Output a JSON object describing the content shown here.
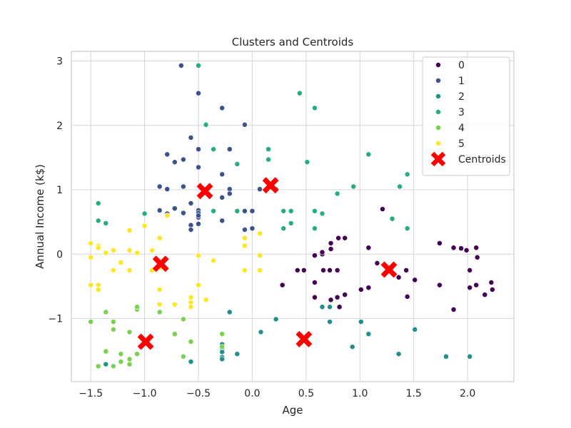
{
  "chart_data": {
    "type": "scatter",
    "title": "Clusters and Centroids",
    "xlabel": "Age",
    "ylabel": "Annual Income (k$)",
    "xlim": [
      -1.68,
      2.43
    ],
    "ylim": [
      -1.98,
      3.15
    ],
    "xticks": [
      -1.5,
      -1.0,
      -0.5,
      0.0,
      0.5,
      1.0,
      1.5,
      2.0
    ],
    "xtick_labels": [
      "−1.5",
      "−1.0",
      "−0.5",
      "0.0",
      "0.5",
      "1.0",
      "1.5",
      "2.0"
    ],
    "yticks": [
      -1,
      0,
      1,
      2,
      3
    ],
    "ytick_labels": [
      "−1",
      "0",
      "1",
      "2",
      "3"
    ],
    "grid": true,
    "legend_position": "top-right",
    "series": [
      {
        "name": "0",
        "color": "#440154",
        "points": [
          [
            0.28,
            -0.48
          ],
          [
            0.42,
            -0.25
          ],
          [
            0.48,
            -0.25
          ],
          [
            0.58,
            -0.67
          ],
          [
            0.58,
            -0.44
          ],
          [
            0.58,
            -0.02
          ],
          [
            0.65,
            0.0
          ],
          [
            0.65,
            0.03
          ],
          [
            0.66,
            -0.25
          ],
          [
            0.72,
            -0.25
          ],
          [
            0.73,
            0.08
          ],
          [
            0.73,
            0.17
          ],
          [
            0.73,
            -0.71
          ],
          [
            0.79,
            -0.67
          ],
          [
            0.79,
            -0.25
          ],
          [
            0.8,
            0.25
          ],
          [
            0.81,
            -0.82
          ],
          [
            0.86,
            0.25
          ],
          [
            0.86,
            -0.63
          ],
          [
            1.01,
            -0.55
          ],
          [
            1.08,
            0.1
          ],
          [
            1.08,
            -0.52
          ],
          [
            1.16,
            -0.14
          ],
          [
            1.21,
            0.7
          ],
          [
            1.36,
            -0.36
          ],
          [
            1.43,
            -0.25
          ],
          [
            1.44,
            -0.66
          ],
          [
            1.51,
            -0.4
          ],
          [
            1.74,
            0.17
          ],
          [
            1.74,
            -0.48
          ],
          [
            1.87,
            -0.86
          ],
          [
            1.87,
            0.1
          ],
          [
            1.94,
            0.09
          ],
          [
            1.99,
            0.06
          ],
          [
            2.02,
            -0.25
          ],
          [
            2.02,
            -0.52
          ],
          [
            2.08,
            0.1
          ],
          [
            2.08,
            -0.48
          ],
          [
            2.09,
            -0.05
          ],
          [
            2.16,
            -0.63
          ],
          [
            2.22,
            -0.44
          ],
          [
            2.23,
            -0.55
          ]
        ]
      },
      {
        "name": "1",
        "color": "#3b528b",
        "points": [
          [
            -0.86,
            1.05
          ],
          [
            -0.86,
            0.68
          ],
          [
            -0.79,
            1.55
          ],
          [
            -0.79,
            1.01
          ],
          [
            -0.79,
            0.63
          ],
          [
            -0.72,
            1.43
          ],
          [
            -0.72,
            0.71
          ],
          [
            -0.66,
            2.93
          ],
          [
            -0.64,
            1.05
          ],
          [
            -0.64,
            1.47
          ],
          [
            -0.64,
            0.64
          ],
          [
            -0.57,
            1.81
          ],
          [
            -0.57,
            0.79
          ],
          [
            -0.57,
            0.45
          ],
          [
            -0.57,
            0.38
          ],
          [
            -0.5,
            0.68
          ],
          [
            -0.5,
            0.64
          ],
          [
            -0.5,
            0.57
          ],
          [
            -0.5,
            0.47
          ],
          [
            -0.5,
            0.6
          ],
          [
            -0.5,
            2.5
          ],
          [
            -0.5,
            1.63
          ],
          [
            -0.5,
            1.35
          ],
          [
            -0.28,
            2.27
          ],
          [
            -0.28,
            1.24
          ],
          [
            -0.28,
            0.52
          ],
          [
            -0.28,
            0.88
          ],
          [
            -0.21,
            1.63
          ],
          [
            -0.21,
            1.01
          ],
          [
            -0.21,
            0.94
          ],
          [
            -0.07,
            2.01
          ],
          [
            -0.07,
            0.67
          ],
          [
            -0.07,
            0.38
          ],
          [
            0.0,
            0.67
          ],
          [
            0.0,
            0.4
          ],
          [
            0.07,
            1.01
          ]
        ]
      },
      {
        "name": "2",
        "color": "#21908d",
        "points": [
          [
            -1.36,
            -1.71
          ],
          [
            -0.57,
            -1.67
          ],
          [
            -0.28,
            -1.4
          ],
          [
            -0.28,
            -1.49
          ],
          [
            -0.28,
            -1.52
          ],
          [
            -0.28,
            -1.6
          ],
          [
            -0.28,
            -1.63
          ],
          [
            -0.21,
            -0.9
          ],
          [
            -0.14,
            -1.55
          ],
          [
            0.08,
            -1.21
          ],
          [
            0.22,
            -1.01
          ],
          [
            0.65,
            -0.82
          ],
          [
            0.72,
            -1.05
          ],
          [
            0.72,
            -0.82
          ],
          [
            0.93,
            -1.44
          ],
          [
            1.01,
            -1.05
          ],
          [
            1.08,
            -1.24
          ],
          [
            1.36,
            -1.55
          ],
          [
            1.51,
            -1.17
          ],
          [
            1.8,
            -1.59
          ],
          [
            2.02,
            -1.59
          ]
        ]
      },
      {
        "name": "3",
        "color": "#27ad81",
        "points": [
          [
            -1.43,
            0.79
          ],
          [
            -1.43,
            0.52
          ],
          [
            -1.36,
            0.48
          ],
          [
            -1.0,
            0.63
          ],
          [
            -0.5,
            2.93
          ],
          [
            -0.43,
            2.01
          ],
          [
            -0.36,
            0.67
          ],
          [
            -0.36,
            1.63
          ],
          [
            -0.14,
            1.4
          ],
          [
            -0.14,
            0.67
          ],
          [
            0.15,
            1.63
          ],
          [
            0.15,
            1.47
          ],
          [
            0.22,
            1.01
          ],
          [
            0.29,
            0.67
          ],
          [
            0.29,
            0.4
          ],
          [
            0.36,
            0.67
          ],
          [
            0.36,
            0.48
          ],
          [
            0.44,
            2.5
          ],
          [
            0.51,
            1.43
          ],
          [
            0.58,
            2.27
          ],
          [
            0.58,
            0.67
          ],
          [
            0.58,
            0.4
          ],
          [
            0.65,
            0.63
          ],
          [
            0.79,
            0.94
          ],
          [
            0.94,
            1.05
          ],
          [
            1.08,
            1.55
          ],
          [
            1.3,
            0.55
          ],
          [
            1.37,
            1.05
          ],
          [
            1.44,
            1.24
          ],
          [
            1.44,
            0.4
          ]
        ]
      },
      {
        "name": "4",
        "color": "#7ad151",
        "points": [
          [
            -1.5,
            -1.05
          ],
          [
            -1.43,
            -1.74
          ],
          [
            -1.36,
            -0.9
          ],
          [
            -1.36,
            -1.51
          ],
          [
            -1.29,
            -1.05
          ],
          [
            -1.29,
            -1.17
          ],
          [
            -1.29,
            -1.74
          ],
          [
            -1.22,
            -1.55
          ],
          [
            -1.22,
            -1.67
          ],
          [
            -1.14,
            -1.21
          ],
          [
            -1.14,
            -1.63
          ],
          [
            -1.14,
            -1.71
          ],
          [
            -1.07,
            -0.86
          ],
          [
            -1.07,
            -0.82
          ],
          [
            -1.07,
            -1.55
          ],
          [
            -0.86,
            -0.9
          ],
          [
            -0.72,
            -1.24
          ],
          [
            -0.64,
            -1.01
          ],
          [
            -0.64,
            -1.59
          ],
          [
            -0.57,
            -1.36
          ],
          [
            -0.28,
            -1.24
          ],
          [
            -0.28,
            -1.44
          ]
        ]
      },
      {
        "name": "5",
        "color": "#fde725",
        "points": [
          [
            -1.5,
            0.17
          ],
          [
            -1.5,
            -0.05
          ],
          [
            -1.5,
            -0.48
          ],
          [
            -1.43,
            0.13
          ],
          [
            -1.43,
            0.1
          ],
          [
            -1.43,
            -0.48
          ],
          [
            -1.43,
            -0.55
          ],
          [
            -1.36,
            0.02
          ],
          [
            -1.29,
            0.06
          ],
          [
            -1.29,
            -0.25
          ],
          [
            -1.22,
            -0.13
          ],
          [
            -1.14,
            0.37
          ],
          [
            -1.14,
            0.06
          ],
          [
            -1.14,
            -0.25
          ],
          [
            -1.07,
            0.02
          ],
          [
            -1.0,
            0.44
          ],
          [
            -0.93,
            0.06
          ],
          [
            -0.93,
            -0.25
          ],
          [
            -0.86,
            0.25
          ],
          [
            -0.86,
            -0.21
          ],
          [
            -0.86,
            -0.55
          ],
          [
            -0.86,
            -0.78
          ],
          [
            -0.79,
            0.6
          ],
          [
            -0.72,
            -0.78
          ],
          [
            -0.57,
            -0.67
          ],
          [
            -0.57,
            -0.75
          ],
          [
            -0.57,
            -0.82
          ],
          [
            -0.5,
            -0.02
          ],
          [
            -0.5,
            -0.48
          ],
          [
            -0.43,
            -0.71
          ],
          [
            -0.36,
            -0.1
          ],
          [
            -0.07,
            0.25
          ],
          [
            -0.07,
            0.13
          ],
          [
            -0.07,
            -0.25
          ],
          [
            0.07,
            0.32
          ],
          [
            0.07,
            -0.02
          ],
          [
            0.07,
            -0.25
          ]
        ]
      }
    ],
    "centroids": {
      "name": "Centroids",
      "color": "#ff0000",
      "points": [
        [
          -0.44,
          0.98
        ],
        [
          0.17,
          1.07
        ],
        [
          -0.85,
          -0.15
        ],
        [
          1.27,
          -0.24
        ],
        [
          -0.99,
          -1.36
        ],
        [
          0.48,
          -1.32
        ]
      ]
    }
  }
}
